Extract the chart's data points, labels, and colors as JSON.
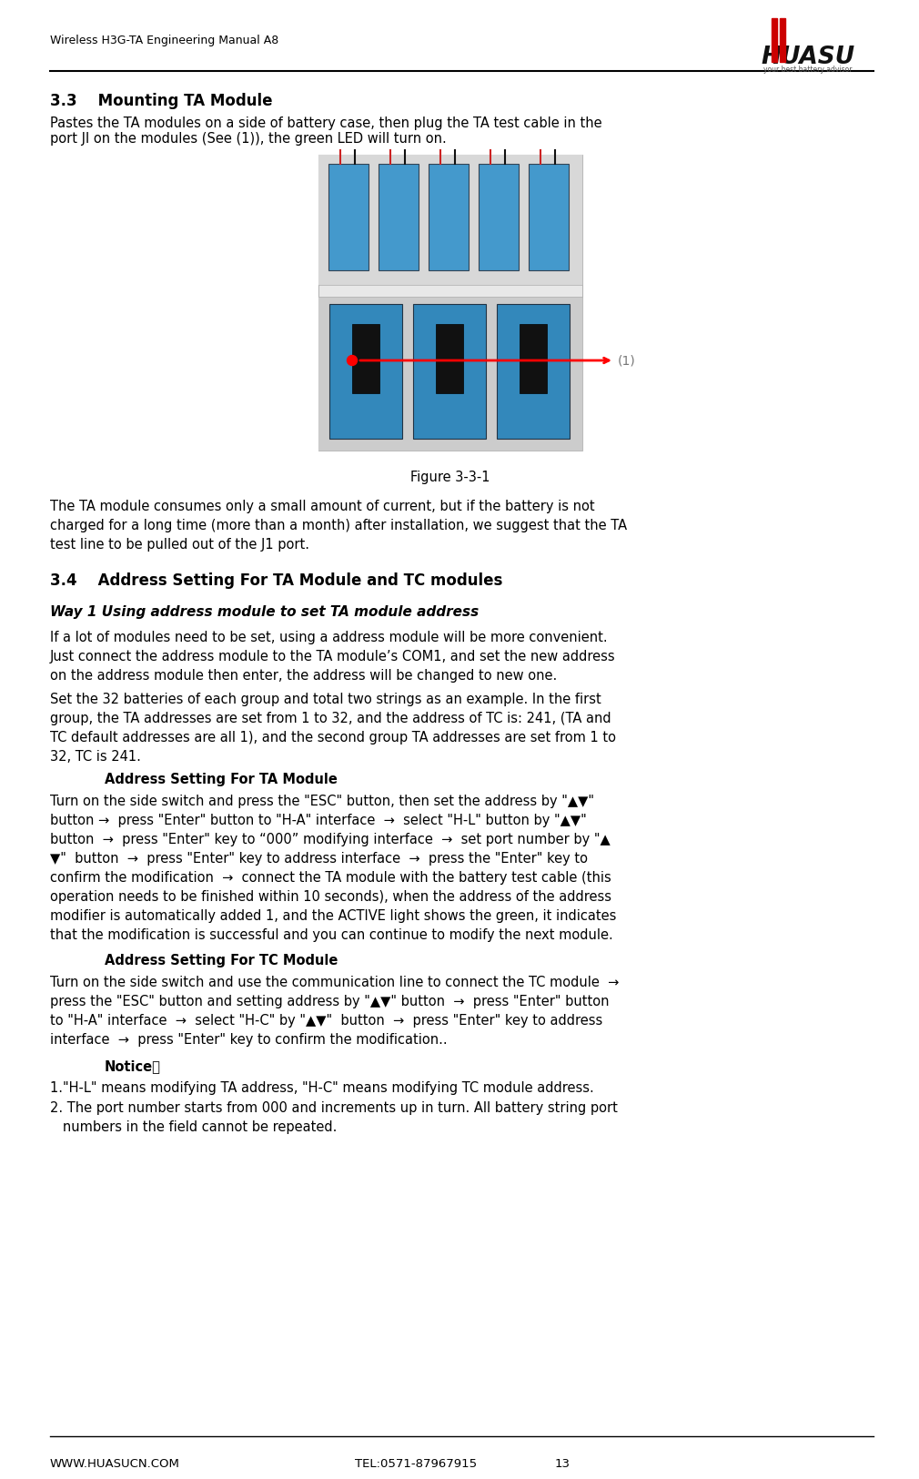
{
  "header_left": "Wireless H3G-TA Engineering Manual A8",
  "footer_left": "WWW.HUASUCN.COM",
  "footer_mid": "TEL:0571-87967915",
  "footer_page": "13",
  "section_33_title": "3.3    Mounting TA Module",
  "section_33_body": "Pastes the TA modules on a side of battery case, then plug the TA test cable in the\nport JI on the modules (See (1)), the green LED will turn on.",
  "figure_caption": "Figure 3-3-1",
  "section_33_body2_line1": "The TA module consumes only a small amount of current, but if the battery is not",
  "section_33_body2_line2": "charged for a long time (more than a month) after installation, we suggest that the TA",
  "section_33_body2_line3": "test line to be pulled out of the J1 port.",
  "section_34_title": "3.4    Address Setting For TA Module and TC modules",
  "way1_title": "Way 1 Using address module to set TA module address",
  "way1_body_line1": "If a lot of modules need to be set, using a address module will be more convenient.",
  "way1_body_line2": "Just connect the address module to the TA module’s COM1, and set the new address",
  "way1_body_line3": "on the address module then enter, the address will be changed to new one.",
  "way1_body2_line1": "Set the 32 batteries of each group and total two strings as an example. In the first",
  "way1_body2_line2": "group, the TA addresses are set from 1 to 32, and the address of TC is: 241, (TA and",
  "way1_body2_line3": "TC default addresses are all 1), and the second group TA addresses are set from 1 to",
  "way1_body2_line4": "32, TC is 241.",
  "ta_addr_title": "Address Setting For TA Module",
  "ta_addr_line1": "Turn on the side switch and press the \"ESC\" button, then set the address by \"▲▼\"",
  "ta_addr_line2": "button →  press \"Enter\" button to \"H-A\" interface  →  select \"H-L\" button by \"▲▼\"",
  "ta_addr_line3": "button  →  press \"Enter\" key to “000” modifying interface  →  set port number by \"▲",
  "ta_addr_line4": "▼\"  button  →  press \"Enter\" key to address interface  →  press the \"Enter\" key to",
  "ta_addr_line5": "confirm the modification  →  connect the TA module with the battery test cable (this",
  "ta_addr_line6": "operation needs to be finished within 10 seconds), when the address of the address",
  "ta_addr_line7": "modifier is automatically added 1, and the ACTIVE light shows the green, it indicates",
  "ta_addr_line8": "that the modification is successful and you can continue to modify the next module.",
  "tc_addr_title": "Address Setting For TC Module",
  "tc_addr_line1": "Turn on the side switch and use the communication line to connect the TC module  →",
  "tc_addr_line2": "press the \"ESC\" button and setting address by \"▲▼\" button  →  press \"Enter\" button",
  "tc_addr_line3": "to \"H-A\" interface  →  select \"H-C\" by \"▲▼\"  button  →  press \"Enter\" key to address",
  "tc_addr_line4": "interface  →  press \"Enter\" key to confirm the modification..",
  "notice_title": "Notice：",
  "notice_body1": "1.\"H-L\" means modifying TA address, \"H-C\" means modifying TC module address.",
  "notice_body2_line1": "2. The port number starts from 000 and increments up in turn. All battery string port",
  "notice_body2_line2": "   numbers in the field cannot be repeated.",
  "bg_color": "#ffffff",
  "text_color": "#000000",
  "logo_red": "#cc0000"
}
